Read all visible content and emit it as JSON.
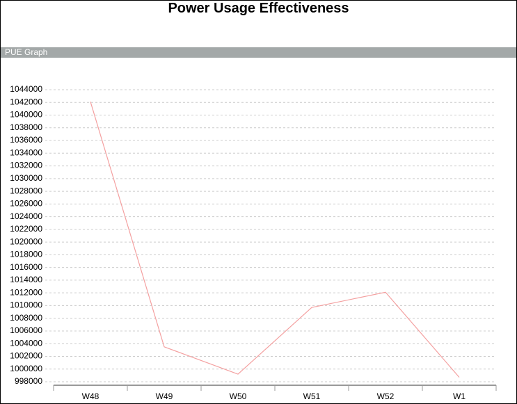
{
  "header": {
    "title": "Power Usage Effectiveness",
    "panel": "PUE Graph"
  },
  "chart_data": {
    "type": "line",
    "categories": [
      "W48",
      "W49",
      "W50",
      "W51",
      "W52",
      "W1"
    ],
    "values": [
      1042100,
      1003500,
      999200,
      1009700,
      1012100,
      998700
    ],
    "color": "#f4a0a0",
    "ylim": [
      998000,
      1044000
    ],
    "yticks": [
      998000,
      1000000,
      1002000,
      1004000,
      1006000,
      1008000,
      1010000,
      1012000,
      1014000,
      1016000,
      1018000,
      1020000,
      1022000,
      1024000,
      1026000,
      1028000,
      1030000,
      1032000,
      1034000,
      1036000,
      1038000,
      1040000,
      1042000,
      1044000
    ],
    "grid": true
  }
}
